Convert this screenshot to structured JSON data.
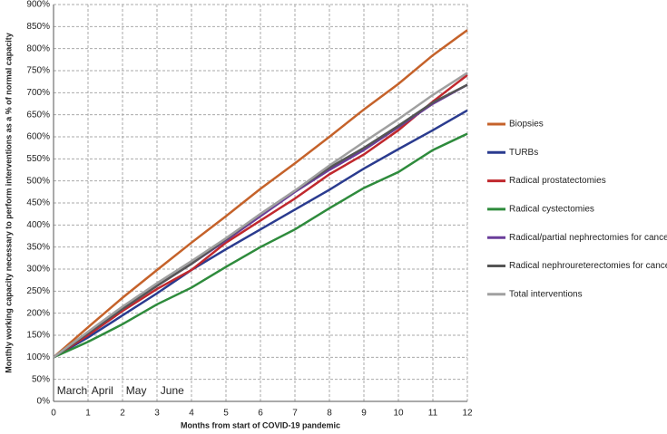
{
  "chart_data": {
    "type": "line",
    "x_label": "Months from start of COVID-19 pandemic",
    "y_label": "Monthly working capacity necessary to perform interventions as a % of normal  capacity",
    "x": [
      0,
      1,
      2,
      3,
      4,
      5,
      6,
      7,
      8,
      9,
      10,
      11,
      12
    ],
    "xlim": [
      0,
      12
    ],
    "xticks": [
      0,
      1,
      2,
      3,
      4,
      5,
      6,
      7,
      8,
      9,
      10,
      11,
      12
    ],
    "ylim": [
      0,
      900
    ],
    "yticks": [
      {
        "value": 0,
        "label": "0%"
      },
      {
        "value": 50,
        "label": "50%"
      },
      {
        "value": 100,
        "label": "100%"
      },
      {
        "value": 150,
        "label": "150%"
      },
      {
        "value": 200,
        "label": "200%"
      },
      {
        "value": 250,
        "label": "250%"
      },
      {
        "value": 300,
        "label": "300%"
      },
      {
        "value": 350,
        "label": "350%"
      },
      {
        "value": 400,
        "label": "400%"
      },
      {
        "value": 450,
        "label": "450%"
      },
      {
        "value": 500,
        "label": "500%"
      },
      {
        "value": 550,
        "label": "550%"
      },
      {
        "value": 600,
        "label": "600%"
      },
      {
        "value": 650,
        "label": "650%"
      },
      {
        "value": 700,
        "label": "700%"
      },
      {
        "value": 750,
        "label": "750%"
      },
      {
        "value": 800,
        "label": "800%"
      },
      {
        "value": 850,
        "label": "850%"
      },
      {
        "value": 900,
        "label": "900%"
      }
    ],
    "grid": true,
    "legend": "right",
    "annotations": [
      "March",
      "April",
      "May",
      "June"
    ],
    "series": [
      {
        "name": "Biopsies",
        "color": "#c5622a",
        "values": [
          100,
          168,
          235,
          298,
          360,
          420,
          482,
          540,
          600,
          662,
          720,
          785,
          842
        ]
      },
      {
        "name": "TURBs",
        "color": "#2a3b8f",
        "values": [
          100,
          145,
          195,
          245,
          298,
          345,
          390,
          435,
          480,
          528,
          572,
          615,
          660
        ]
      },
      {
        "name": "Radical prostatectomies",
        "color": "#c0282d",
        "values": [
          100,
          150,
          205,
          255,
          298,
          360,
          410,
          460,
          515,
          560,
          615,
          680,
          740
        ]
      },
      {
        "name": "Radical cystectomies",
        "color": "#2e8b3c",
        "values": [
          100,
          135,
          175,
          220,
          258,
          305,
          350,
          390,
          438,
          484,
          520,
          570,
          607
        ]
      },
      {
        "name": "Radical/partial nephrectomies for cancer",
        "color": "#6a3d9a",
        "values": [
          100,
          155,
          210,
          262,
          312,
          365,
          420,
          475,
          525,
          570,
          622,
          675,
          718
        ]
      },
      {
        "name": "Radical nephroureterectomies for cancer",
        "color": "#555555",
        "values": [
          100,
          155,
          210,
          262,
          312,
          368,
          425,
          478,
          530,
          575,
          625,
          678,
          718
        ]
      },
      {
        "name": "Total interventions",
        "color": "#a0a0a0",
        "values": [
          100,
          158,
          215,
          268,
          318,
          370,
          425,
          478,
          535,
          588,
          640,
          695,
          745
        ]
      }
    ]
  }
}
